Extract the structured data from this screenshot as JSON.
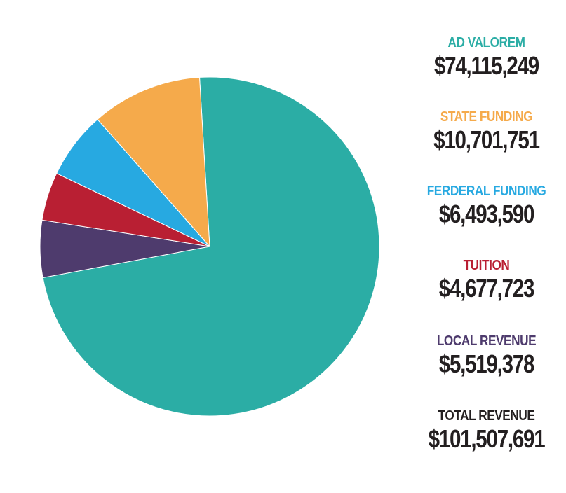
{
  "chart_data": {
    "type": "pie",
    "categories": [
      "AD VALOREM",
      "STATE FUNDING",
      "FERDERAL FUNDING",
      "TUITION",
      "LOCAL REVENUE"
    ],
    "values": [
      74115249,
      10701751,
      6493590,
      4677723,
      5519378
    ],
    "value_labels": [
      "$74,115,249",
      "$10,701,751",
      "$6,493,590",
      "$4,677,723",
      "$5,519,378"
    ],
    "colors": [
      "#2bada5",
      "#f5aa4b",
      "#27a9e1",
      "#b91f33",
      "#4e3b6d"
    ],
    "legend_position": "right",
    "total_label": "TOTAL REVENUE",
    "total_value": "$101,507,691"
  }
}
